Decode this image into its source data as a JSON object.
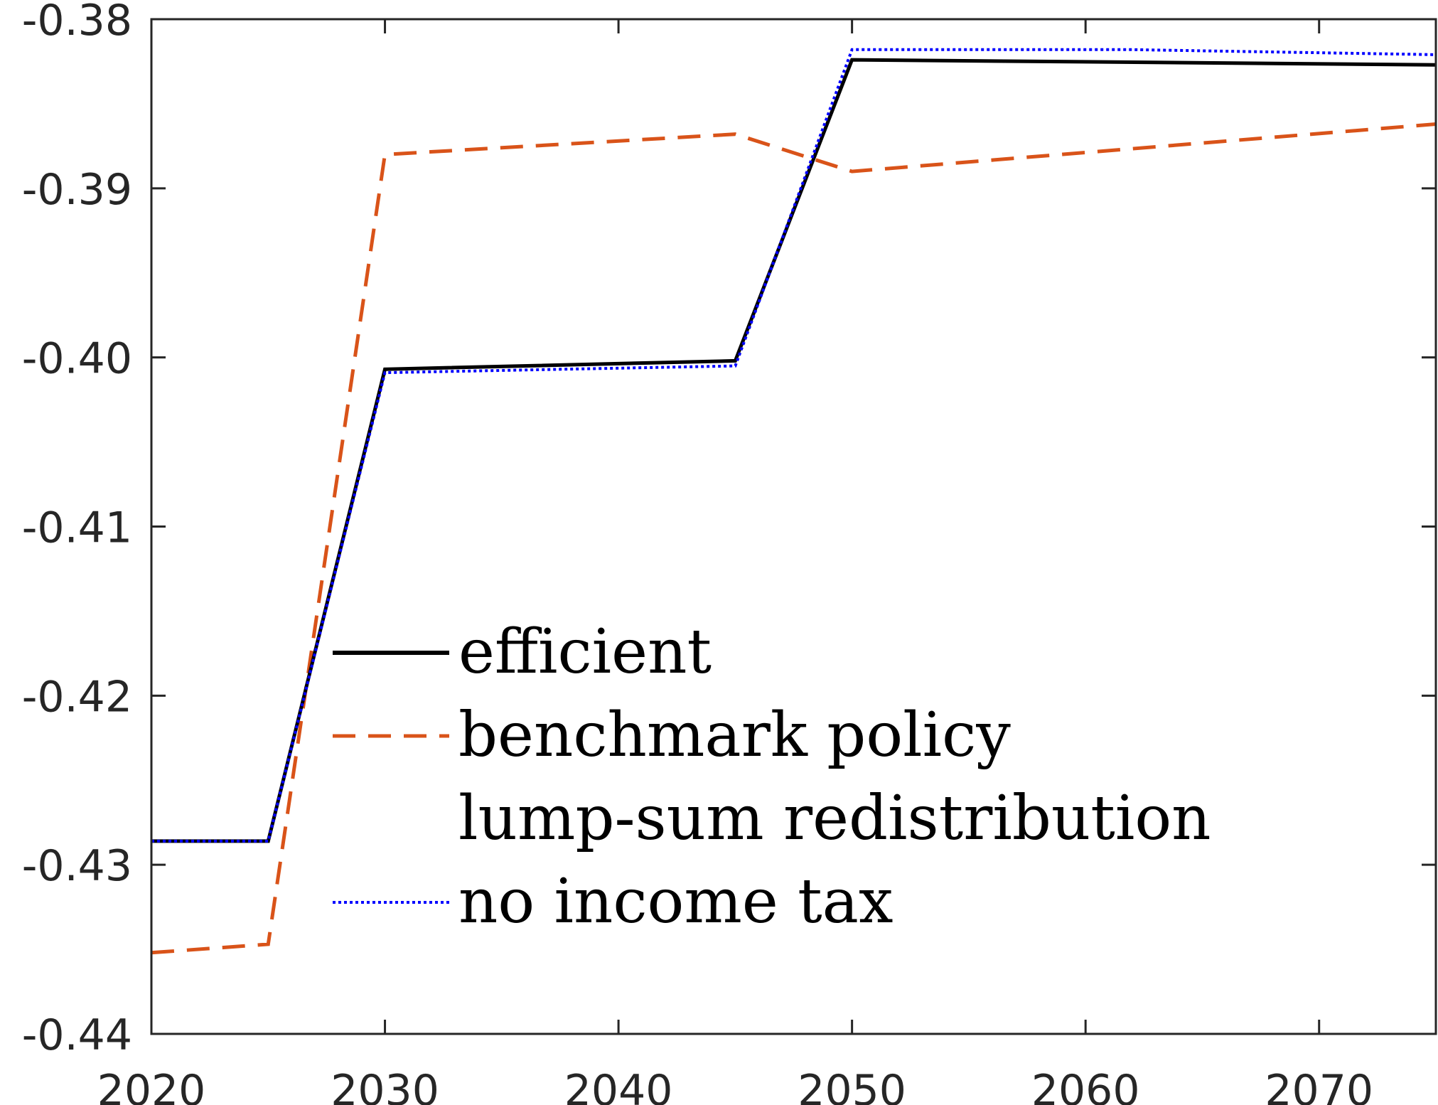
{
  "chart_data": {
    "type": "line",
    "xlim": [
      2020,
      2075
    ],
    "ylim": [
      -0.44,
      -0.38
    ],
    "xticks": [
      2020,
      2030,
      2040,
      2050,
      2060,
      2070
    ],
    "xtick_labels": [
      "2020",
      "2030",
      "2040",
      "2050",
      "2060",
      "2070"
    ],
    "yticks": [
      -0.44,
      -0.43,
      -0.42,
      -0.41,
      -0.4,
      -0.39,
      -0.38
    ],
    "ytick_labels": [
      "-0.44",
      "-0.43",
      "-0.42",
      "-0.41",
      "-0.40",
      "-0.39",
      "-0.38"
    ],
    "grid": false,
    "legend_position": "lower-center",
    "series": [
      {
        "name": "efficient",
        "style": "solid",
        "color": "#000000",
        "x": [
          2020,
          2025,
          2030,
          2045,
          2050,
          2075
        ],
        "y": [
          -0.4286,
          -0.4286,
          -0.4007,
          -0.4002,
          -0.3824,
          -0.3827
        ]
      },
      {
        "name": "benchmark policy",
        "style": "dashed",
        "color": "#D95319",
        "x": [
          2020,
          2025,
          2030,
          2045,
          2050,
          2075
        ],
        "y": [
          -0.4352,
          -0.4347,
          -0.388,
          -0.3868,
          -0.389,
          -0.3862
        ]
      },
      {
        "name": "lump-sum redistribution",
        "style": "none",
        "color": "#D95319",
        "x": [],
        "y": []
      },
      {
        "name": "no income tax",
        "style": "dotted",
        "color": "#0000FF",
        "x": [
          2020,
          2025,
          2030,
          2045,
          2050,
          2062,
          2075
        ],
        "y": [
          -0.4286,
          -0.4286,
          -0.4009,
          -0.4005,
          -0.3818,
          -0.3818,
          -0.3821
        ]
      }
    ]
  }
}
